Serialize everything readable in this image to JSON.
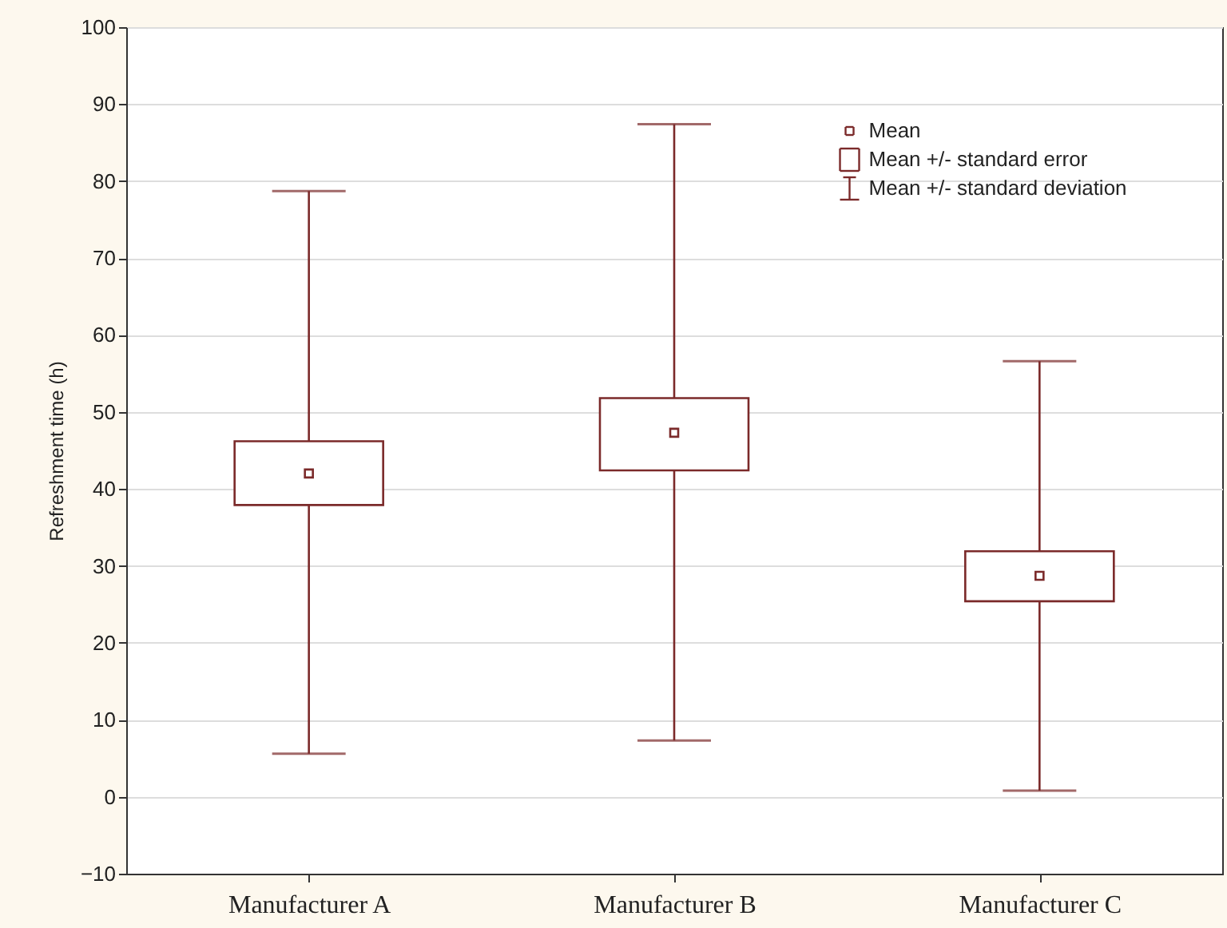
{
  "chart_data": {
    "type": "box",
    "ylabel": "Refreshment time (h)",
    "categories": [
      "Manufacturer A",
      "Manufacturer B",
      "Manufacturer C"
    ],
    "color": "#7b2a2a",
    "boxes": [
      {
        "low": 5.6,
        "q1": 37.9,
        "q3": 46.2,
        "high": 78.7,
        "mean": 42.0
      },
      {
        "low": 7.3,
        "q1": 42.4,
        "q3": 51.8,
        "high": 87.4,
        "mean": 47.3
      },
      {
        "low": 0.8,
        "q1": 25.4,
        "q3": 31.9,
        "high": 56.6,
        "mean": 28.7
      }
    ],
    "ylim": [
      -10,
      100
    ],
    "yticks": [
      -10,
      0,
      10,
      20,
      30,
      40,
      50,
      60,
      70,
      80,
      90,
      100
    ],
    "grid": "y",
    "annotations": [
      "Mean",
      "Mean +/- standard error",
      "Mean +/- standard deviation"
    ]
  }
}
